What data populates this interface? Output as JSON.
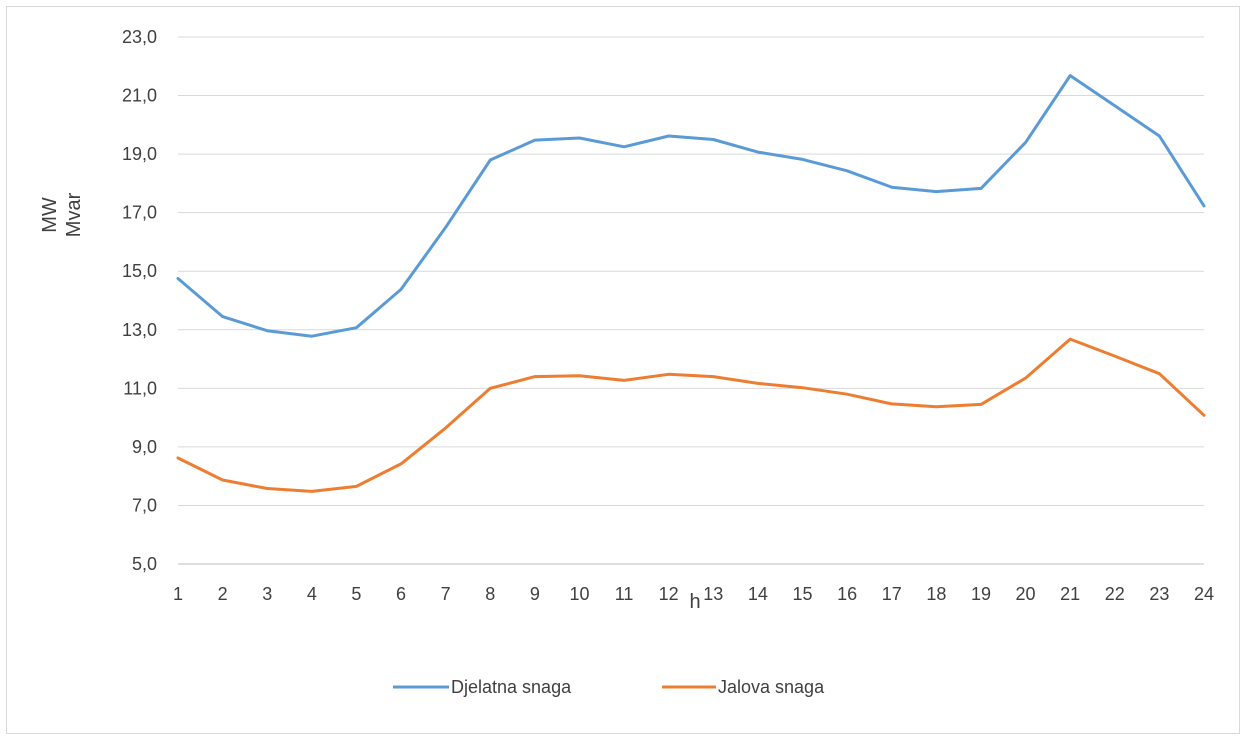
{
  "chart_data": {
    "type": "line",
    "title": "",
    "xlabel": "h",
    "ylabel_lines": [
      "MW",
      "Mvar"
    ],
    "categories": [
      "1",
      "2",
      "3",
      "4",
      "5",
      "6",
      "7",
      "8",
      "9",
      "10",
      "11",
      "12",
      "13",
      "14",
      "15",
      "16",
      "17",
      "18",
      "19",
      "20",
      "21",
      "22",
      "23",
      "24"
    ],
    "ylim": [
      5.0,
      23.0
    ],
    "yticks": [
      "5,0",
      "7,0",
      "9,0",
      "11,0",
      "13,0",
      "15,0",
      "17,0",
      "19,0",
      "21,0",
      "23,0"
    ],
    "grid": true,
    "legend_position": "bottom",
    "series": [
      {
        "name": "Djelatna snaga",
        "color": "#5b9bd5",
        "values": [
          14.75,
          13.45,
          12.97,
          12.78,
          13.07,
          14.38,
          16.5,
          18.8,
          19.48,
          19.55,
          19.25,
          19.62,
          19.5,
          19.07,
          18.82,
          18.43,
          17.87,
          17.72,
          17.83,
          19.4,
          21.68,
          20.65,
          19.62,
          17.23
        ]
      },
      {
        "name": "Jalova snaga",
        "color": "#ed7d31",
        "values": [
          8.62,
          7.87,
          7.58,
          7.48,
          7.65,
          8.42,
          9.65,
          11.0,
          11.4,
          11.43,
          11.27,
          11.48,
          11.4,
          11.17,
          11.02,
          10.8,
          10.47,
          10.37,
          10.45,
          11.35,
          12.68,
          12.1,
          11.5,
          10.08
        ]
      }
    ]
  }
}
